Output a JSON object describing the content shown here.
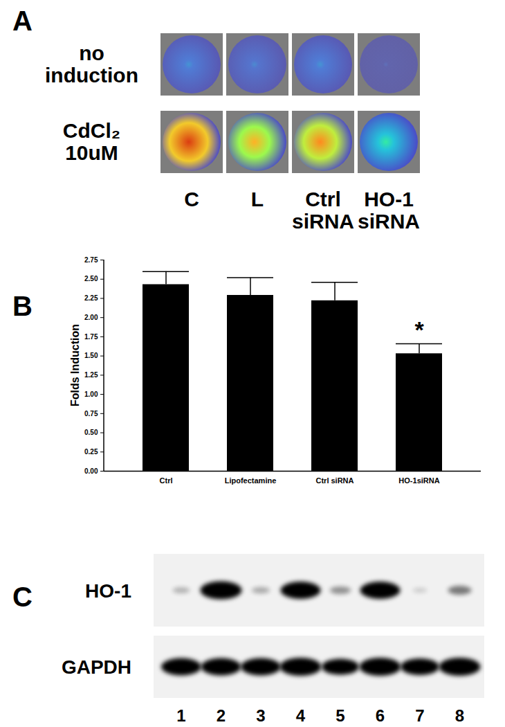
{
  "panel_labels": [
    "A",
    "B",
    "C"
  ],
  "imaging": {
    "rows": [
      {
        "label": [
          "no",
          "induction"
        ],
        "signal": [
          0.2,
          0.18,
          0.2,
          0.12
        ]
      },
      {
        "label": [
          "CdCl₂",
          "10uM"
        ],
        "signal": [
          0.85,
          0.68,
          0.74,
          0.35
        ]
      }
    ],
    "columns": [
      [
        "C"
      ],
      [
        "L"
      ],
      [
        "Ctrl",
        "siRNA"
      ],
      [
        "HO-1",
        "siRNA"
      ]
    ]
  },
  "chart_data": {
    "type": "bar",
    "y_label": "Folds Induction",
    "categories": [
      "Ctrl",
      "Lipofectamine",
      "Ctrl siRNA",
      "HO-1siRNA"
    ],
    "values": [
      2.43,
      2.29,
      2.22,
      1.53
    ],
    "error": [
      0.17,
      0.23,
      0.24,
      0.13
    ],
    "color": "#000000",
    "ylim": [
      0,
      2.75
    ],
    "yticks": [
      {
        "value": 0,
        "label": "0.00"
      },
      {
        "value": 0.25,
        "label": "0.25"
      },
      {
        "value": 0.5,
        "label": "0.50"
      },
      {
        "value": 0.75,
        "label": "0.75"
      },
      {
        "value": 1,
        "label": "1.00"
      },
      {
        "value": 1.25,
        "label": "1.25"
      },
      {
        "value": 1.5,
        "label": "1.50"
      },
      {
        "value": 1.75,
        "label": "1.75"
      },
      {
        "value": 2,
        "label": "2.00"
      },
      {
        "value": 2.25,
        "label": "2.25"
      },
      {
        "value": 2.5,
        "label": "2.50"
      },
      {
        "value": 2.75,
        "label": "2.75"
      }
    ],
    "annotations": [
      {
        "category": "HO-1siRNA",
        "text": "*"
      }
    ]
  },
  "blot": {
    "rows": [
      {
        "label": "HO-1",
        "intensity": [
          0.12,
          1.0,
          0.15,
          0.95,
          0.25,
          0.95,
          0.02,
          0.35
        ]
      },
      {
        "label": "GAPDH",
        "intensity": [
          0.95,
          0.95,
          0.95,
          1.0,
          0.85,
          1.0,
          0.9,
          1.0
        ]
      }
    ],
    "lanes": [
      1,
      2,
      3,
      4,
      5,
      6,
      7,
      8
    ]
  }
}
